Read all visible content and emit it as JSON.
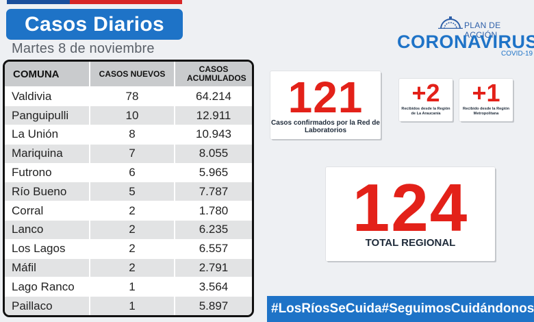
{
  "header": {
    "title": "Casos Diarios",
    "date": "Martes 8  de noviembre"
  },
  "colors": {
    "primary_blue": "#1e73c7",
    "accent_red": "#e32119",
    "table_header": "#c9cbcd"
  },
  "table": {
    "columns": [
      "COMUNA",
      "CASOS NUEVOS",
      "CASOS ACUMULADOS"
    ],
    "rows": [
      [
        "Valdivia",
        "78",
        "64.214"
      ],
      [
        "Panguipulli",
        "10",
        "12.911"
      ],
      [
        "La Unión",
        "8",
        "10.943"
      ],
      [
        "Mariquina",
        "7",
        "8.055"
      ],
      [
        "Futrono",
        "6",
        "5.965"
      ],
      [
        "Río Bueno",
        "5",
        "7.787"
      ],
      [
        "Corral",
        "2",
        "1.780"
      ],
      [
        "Lanco",
        "2",
        "6.235"
      ],
      [
        "Los Lagos",
        "2",
        "6.557"
      ],
      [
        "Máfil",
        "2",
        "2.791"
      ],
      [
        "Lago Ranco",
        "1",
        "3.564"
      ],
      [
        "Paillaco",
        "1",
        "5.897"
      ]
    ]
  },
  "logo": {
    "plan": "PLAN DE ACCIÓN",
    "name": "CORONAVIRUS",
    "sub": "COVID-19",
    "icon": "dome-icon"
  },
  "stats": {
    "lab_cases": {
      "value": "121",
      "caption": "Casos confirmados por la Red de Laboratorios"
    },
    "araucania": {
      "value": "+2",
      "caption": "Recibidos desde la Región de La Araucanía"
    },
    "metropolitana": {
      "value": "+1",
      "caption": "Recibido desde la Región Metropolitana"
    },
    "regional_total": {
      "value": "124",
      "caption": "TOTAL REGIONAL"
    }
  },
  "footer": {
    "hashtag1": "#LosRíosSeCuida",
    "hashtag2": "#SeguimosCuidándonos"
  }
}
